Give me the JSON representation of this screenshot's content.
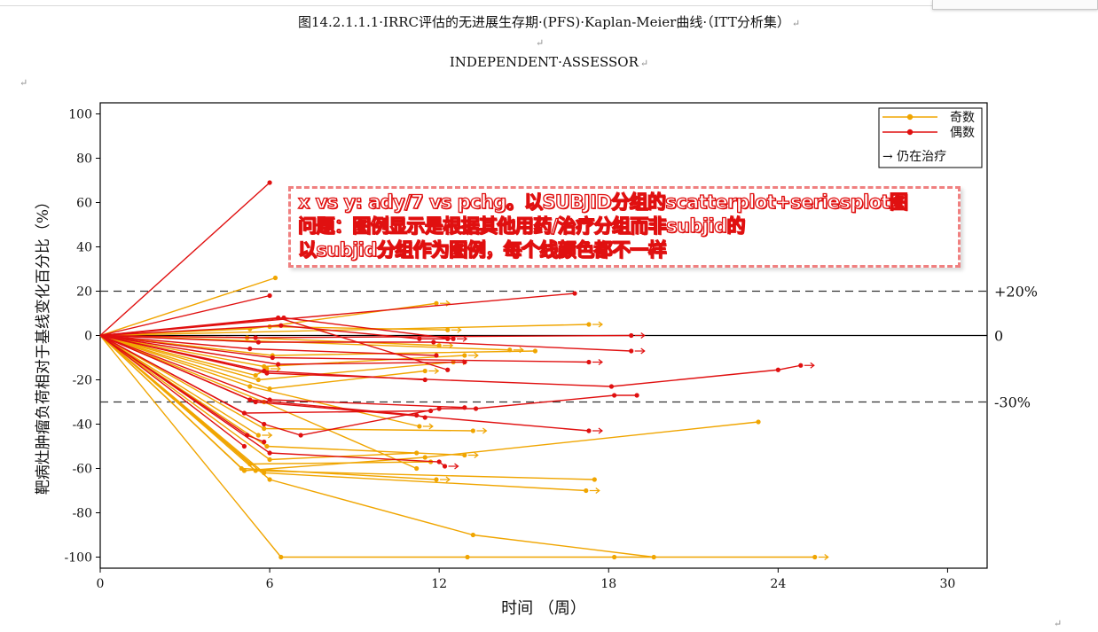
{
  "document": {
    "caption_line1": "图14.2.1.1.1·IRRC评估的无进展生存期·(PFS)·Kaplan-Meier曲线·（ITT分析集）",
    "caption_line2": "INDEPENDENT·ASSESSOR",
    "paragraph_mark": "↵"
  },
  "annotation": {
    "lines": [
      "x vs y: ady/7 vs pchg。以SUBJID分组的scatterplot+seriesplot图",
      "问题：图例显示是根据其他用药/治疗分组而非subjid的",
      "以subjid分组作为图例，每个线颜色都不一样"
    ],
    "border_color": "#f08080",
    "text_color": "#e01010"
  },
  "chart_data": {
    "type": "line",
    "xlabel": "时间 （周）",
    "ylabel": "靶病灶肿瘤负荷相对于基线变化百分比（%）",
    "xlim": [
      0,
      31.4
    ],
    "ylim": [
      -105,
      105
    ],
    "xticks": [
      0,
      6,
      12,
      18,
      24,
      30
    ],
    "yticks": [
      100,
      80,
      60,
      40,
      20,
      0,
      -20,
      -40,
      -60,
      -80,
      -100
    ],
    "reference_lines": [
      {
        "y": 20,
        "label": "+20%",
        "style": "dashed"
      },
      {
        "y": 0,
        "label": "0",
        "style": "solid"
      },
      {
        "y": -30,
        "label": "-30%",
        "style": "dashed"
      }
    ],
    "legend": {
      "position": "top-right",
      "entries": [
        {
          "label": "奇数",
          "color": "#f0a500"
        },
        {
          "label": "偶数",
          "color": "#e01010"
        }
      ],
      "arrow_label": "→ 仍在治疗"
    },
    "series": [
      {
        "group": "odd",
        "points": [
          [
            0,
            0
          ],
          [
            6.2,
            26
          ]
        ]
      },
      {
        "group": "odd",
        "points": [
          [
            0,
            0
          ],
          [
            5.3,
            3
          ],
          [
            11.9,
            14.5
          ]
        ],
        "ongoing": true
      },
      {
        "group": "odd",
        "points": [
          [
            0,
            0
          ],
          [
            6,
            4
          ],
          [
            12.3,
            2.5
          ]
        ],
        "ongoing": true
      },
      {
        "group": "odd",
        "points": [
          [
            0,
            0
          ],
          [
            17.3,
            5
          ]
        ],
        "ongoing": true
      },
      {
        "group": "odd",
        "points": [
          [
            0,
            0
          ],
          [
            5.2,
            -1
          ],
          [
            12,
            -4.5
          ]
        ],
        "ongoing": true
      },
      {
        "group": "odd",
        "points": [
          [
            0,
            0
          ],
          [
            14.5,
            -6.5
          ]
        ],
        "ongoing": true
      },
      {
        "group": "odd",
        "points": [
          [
            0,
            0
          ],
          [
            6.1,
            -9
          ],
          [
            15.4,
            -7
          ]
        ]
      },
      {
        "group": "odd",
        "points": [
          [
            0,
            0
          ],
          [
            5.8,
            -14
          ],
          [
            12.9,
            -9
          ]
        ],
        "ongoing": true
      },
      {
        "group": "odd",
        "points": [
          [
            0,
            0
          ],
          [
            5.6,
            -20
          ],
          [
            12.5,
            -12
          ]
        ],
        "ongoing": true
      },
      {
        "group": "odd",
        "points": [
          [
            0,
            0
          ],
          [
            6,
            -24
          ],
          [
            11.5,
            -16
          ]
        ],
        "ongoing": true
      },
      {
        "group": "odd",
        "points": [
          [
            0,
            0
          ],
          [
            5.5,
            -18
          ],
          [
            5.9,
            -15
          ]
        ],
        "ongoing": true
      },
      {
        "group": "odd",
        "points": [
          [
            0,
            0
          ],
          [
            5.3,
            -23
          ],
          [
            11.3,
            -41
          ]
        ],
        "ongoing": true
      },
      {
        "group": "odd",
        "points": [
          [
            0,
            0
          ],
          [
            5.8,
            -42
          ],
          [
            13.2,
            -43
          ]
        ],
        "ongoing": true
      },
      {
        "group": "odd",
        "points": [
          [
            0,
            0
          ],
          [
            5.6,
            -45
          ]
        ],
        "ongoing": true
      },
      {
        "group": "odd",
        "points": [
          [
            0,
            0
          ],
          [
            5.9,
            -50
          ],
          [
            12.9,
            -54
          ]
        ],
        "ongoing": true
      },
      {
        "group": "odd",
        "points": [
          [
            0,
            0
          ],
          [
            6,
            -56
          ],
          [
            11.2,
            -53
          ]
        ]
      },
      {
        "group": "odd",
        "points": [
          [
            0,
            0
          ],
          [
            5.3,
            -58
          ],
          [
            11.7,
            -57
          ]
        ]
      },
      {
        "group": "odd",
        "points": [
          [
            0,
            0
          ],
          [
            5,
            -60
          ],
          [
            11.9,
            -65
          ]
        ],
        "ongoing": true
      },
      {
        "group": "odd",
        "points": [
          [
            0,
            0
          ],
          [
            5.5,
            -61
          ],
          [
            17.5,
            -65
          ]
        ]
      },
      {
        "group": "odd",
        "points": [
          [
            0,
            0
          ],
          [
            5.8,
            -62
          ],
          [
            17.2,
            -70
          ]
        ],
        "ongoing": true
      },
      {
        "group": "odd",
        "points": [
          [
            0,
            0
          ],
          [
            6,
            -65
          ],
          [
            13.2,
            -90
          ],
          [
            19.6,
            -100
          ]
        ]
      },
      {
        "group": "odd",
        "points": [
          [
            0,
            0
          ],
          [
            5.1,
            -61
          ],
          [
            11.5,
            -55
          ],
          [
            23.3,
            -39
          ]
        ]
      },
      {
        "group": "odd",
        "points": [
          [
            0,
            0
          ],
          [
            6.4,
            -100
          ],
          [
            13,
            -100
          ],
          [
            18.2,
            -100
          ],
          [
            25.3,
            -100
          ]
        ],
        "ongoing": true
      },
      {
        "group": "odd",
        "points": [
          [
            0,
            0
          ],
          [
            5.8,
            -30
          ],
          [
            11.2,
            -60
          ]
        ]
      },
      {
        "group": "even",
        "points": [
          [
            0,
            0
          ],
          [
            6,
            69
          ]
        ]
      },
      {
        "group": "even",
        "points": [
          [
            0,
            0
          ],
          [
            6,
            18
          ]
        ]
      },
      {
        "group": "even",
        "points": [
          [
            0,
            0
          ],
          [
            16.8,
            19
          ]
        ]
      },
      {
        "group": "even",
        "points": [
          [
            0,
            0
          ],
          [
            6.5,
            8
          ],
          [
            12.5,
            -1.5
          ]
        ],
        "ongoing": true
      },
      {
        "group": "even",
        "points": [
          [
            0,
            0
          ],
          [
            6.3,
            8
          ],
          [
            12.3,
            -15.5
          ]
        ]
      },
      {
        "group": "even",
        "points": [
          [
            0,
            0
          ],
          [
            6.4,
            4.5
          ],
          [
            11.3,
            -1.5
          ],
          [
            12.3,
            -1.5
          ]
        ]
      },
      {
        "group": "even",
        "points": [
          [
            0,
            0
          ],
          [
            5.5,
            -1
          ],
          [
            18.8,
            0
          ]
        ],
        "ongoing": true
      },
      {
        "group": "even",
        "points": [
          [
            0,
            0
          ],
          [
            5.6,
            -3
          ],
          [
            11.8,
            -3
          ],
          [
            18.8,
            -7
          ]
        ],
        "ongoing": true
      },
      {
        "group": "even",
        "points": [
          [
            0,
            0
          ],
          [
            6.3,
            -13
          ],
          [
            12.9,
            -12
          ]
        ]
      },
      {
        "group": "even",
        "points": [
          [
            0,
            0
          ],
          [
            5.3,
            -6
          ],
          [
            11.9,
            -9
          ]
        ]
      },
      {
        "group": "even",
        "points": [
          [
            0,
            0
          ],
          [
            6.1,
            -10
          ],
          [
            17.3,
            -12
          ]
        ],
        "ongoing": true
      },
      {
        "group": "even",
        "points": [
          [
            0,
            0
          ],
          [
            5.8,
            -16
          ],
          [
            11.5,
            -20
          ]
        ]
      },
      {
        "group": "even",
        "points": [
          [
            0,
            0
          ],
          [
            5.9,
            -17
          ],
          [
            18.1,
            -23
          ],
          [
            24,
            -15.5
          ],
          [
            24.8,
            -13.5
          ]
        ],
        "ongoing": true
      },
      {
        "group": "even",
        "points": [
          [
            0,
            0
          ],
          [
            6,
            -29
          ],
          [
            12.9,
            -32.5
          ]
        ]
      },
      {
        "group": "even",
        "points": [
          [
            0,
            0
          ],
          [
            5.3,
            -29
          ],
          [
            11.2,
            -36
          ],
          [
            11.5,
            -37
          ]
        ]
      },
      {
        "group": "even",
        "points": [
          [
            0,
            0
          ],
          [
            5.5,
            -30
          ],
          [
            17.3,
            -43
          ]
        ],
        "ongoing": true
      },
      {
        "group": "even",
        "points": [
          [
            0,
            0
          ],
          [
            5.8,
            -40
          ],
          [
            7.1,
            -45
          ],
          [
            12,
            -33
          ],
          [
            13.3,
            -33
          ],
          [
            18.2,
            -27
          ],
          [
            19,
            -27
          ]
        ]
      },
      {
        "group": "even",
        "points": [
          [
            0,
            0
          ],
          [
            5.2,
            -45
          ],
          [
            5.8,
            -48
          ]
        ]
      },
      {
        "group": "even",
        "points": [
          [
            0,
            0
          ],
          [
            5.1,
            -50
          ]
        ]
      },
      {
        "group": "even",
        "points": [
          [
            0,
            0
          ],
          [
            6,
            -53
          ],
          [
            12,
            -57
          ],
          [
            12.2,
            -59
          ]
        ],
        "ongoing": true
      },
      {
        "group": "even",
        "points": [
          [
            0,
            0
          ],
          [
            5.1,
            -35
          ],
          [
            11.7,
            -34
          ]
        ]
      }
    ]
  }
}
